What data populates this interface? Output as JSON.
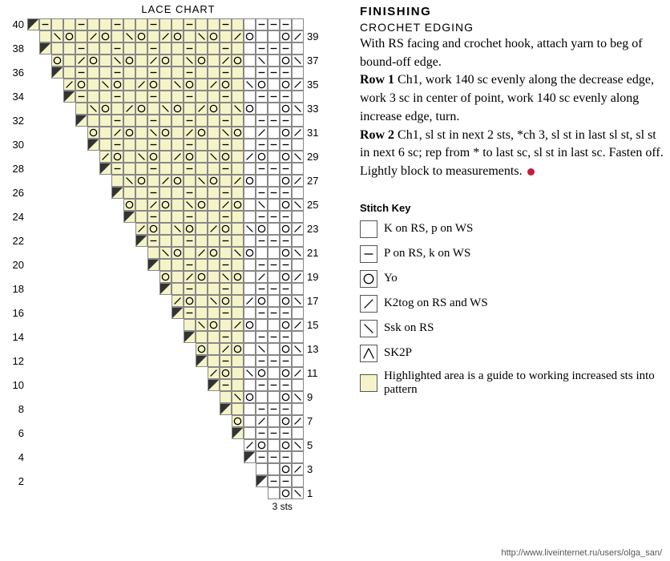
{
  "chart": {
    "title": "LACE CHART",
    "cell_size": 15,
    "highlight_color": "#f4f4c8",
    "grid_color": "#888888",
    "symbols": {
      "k": "",
      "p": "−",
      "yo": "O",
      "k2tog": "k2",
      "ssk": "ssk",
      "sk2p": "sk2p",
      "edge": "◤"
    },
    "sts_label": "3 sts",
    "left_labels": [
      40,
      38,
      36,
      34,
      32,
      30,
      28,
      26,
      24,
      22,
      20,
      18,
      16,
      14,
      12,
      10,
      8,
      6,
      4,
      2
    ],
    "right_labels": [
      39,
      37,
      35,
      33,
      31,
      29,
      27,
      25,
      23,
      21,
      19,
      17,
      15,
      13,
      11,
      9,
      7,
      5,
      3,
      1
    ]
  },
  "finishing": {
    "heading": "FINISHING",
    "sub": "CROCHET EDGING",
    "intro": "With RS facing and crochet hook, attach yarn to beg of bound-off edge.",
    "row1_label": "Row 1",
    "row1_text": " Ch1, work 140 sc evenly along the decrease edge, work 3 sc in center of point, work 140 sc evenly along increase edge, turn.",
    "row2_label": "Row 2",
    "row2_text": " Ch1, sl st in next 2 sts, *ch 3, sl st in last sl st, sl st in next 6 sc; rep from * to last sc, sl st in last sc. Fasten off. Lightly block to measurements."
  },
  "key": {
    "heading": "Stitch Key",
    "items": [
      {
        "sym": "",
        "label": "K on RS, p on WS"
      },
      {
        "sym": "−",
        "label": "P on RS, k on WS"
      },
      {
        "sym": "O",
        "label": "Yo"
      },
      {
        "sym": "k2",
        "label": "K2tog on RS and WS"
      },
      {
        "sym": "ssk",
        "label": "Ssk on RS"
      },
      {
        "sym": "sk2p",
        "label": "SK2P"
      },
      {
        "sym": "",
        "hl": true,
        "label": "Highlighted area is a guide to working increased sts into pattern"
      }
    ]
  },
  "watermark": "http://www.liveinternet.ru/users/olga_san/"
}
